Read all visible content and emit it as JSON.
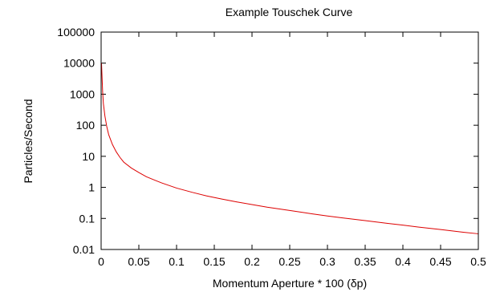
{
  "chart_data": {
    "type": "line",
    "title": "Example Touschek Curve",
    "xlabel": "Momentum Aperture * 100 (δp)",
    "ylabel": "Particles/Second",
    "xlim": [
      0,
      0.5
    ],
    "ylim": [
      0.01,
      100000
    ],
    "yscale": "log",
    "grid": false,
    "legend": "none",
    "x_ticks": [
      {
        "value": 0,
        "label": "0"
      },
      {
        "value": 0.05,
        "label": "0.05"
      },
      {
        "value": 0.1,
        "label": "0.1"
      },
      {
        "value": 0.15,
        "label": "0.15"
      },
      {
        "value": 0.2,
        "label": "0.2"
      },
      {
        "value": 0.25,
        "label": "0.25"
      },
      {
        "value": 0.3,
        "label": "0.3"
      },
      {
        "value": 0.35,
        "label": "0.35"
      },
      {
        "value": 0.4,
        "label": "0.4"
      },
      {
        "value": 0.45,
        "label": "0.45"
      },
      {
        "value": 0.5,
        "label": "0.5"
      }
    ],
    "y_ticks": [
      {
        "value": 0.01,
        "label": "0.01"
      },
      {
        "value": 0.1,
        "label": "0.1"
      },
      {
        "value": 1,
        "label": "1"
      },
      {
        "value": 10,
        "label": "10"
      },
      {
        "value": 100,
        "label": "100"
      },
      {
        "value": 1000,
        "label": "1000"
      },
      {
        "value": 10000,
        "label": "10000"
      },
      {
        "value": 100000,
        "label": "100000"
      }
    ],
    "series": [
      {
        "color": "#dd0000",
        "x": [
          0.0005,
          0.001,
          0.002,
          0.003,
          0.005,
          0.0075,
          0.01,
          0.015,
          0.02,
          0.025,
          0.03,
          0.04,
          0.05,
          0.06,
          0.07,
          0.08,
          0.1,
          0.12,
          0.14,
          0.16,
          0.18,
          0.2,
          0.22,
          0.25,
          0.28,
          0.3,
          0.32,
          0.35,
          0.38,
          0.4,
          0.42,
          0.45,
          0.48,
          0.5
        ],
        "y": [
          10000,
          5000,
          1200,
          500,
          200,
          90,
          50,
          24,
          14,
          9.2,
          6.5,
          4.2,
          3.0,
          2.2,
          1.75,
          1.4,
          0.95,
          0.7,
          0.53,
          0.42,
          0.34,
          0.28,
          0.23,
          0.18,
          0.14,
          0.12,
          0.104,
          0.085,
          0.069,
          0.061,
          0.053,
          0.044,
          0.036,
          0.032
        ]
      }
    ]
  }
}
